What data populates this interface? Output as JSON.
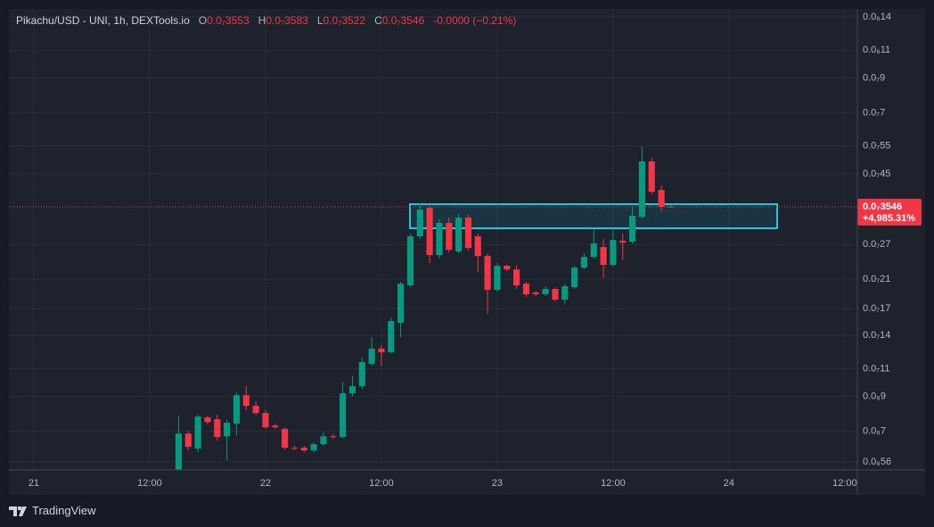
{
  "chart_data": {
    "type": "candlestick",
    "title": "Pikachu/USD - UNI, 1h, DEXTools.io",
    "ohlc_legend": [
      {
        "label": "O",
        "value": "0.0₇3553"
      },
      {
        "label": "H",
        "value": "0.0₇3583"
      },
      {
        "label": "L",
        "value": "0.0₇3522"
      },
      {
        "label": "C",
        "value": "0.0₇3546"
      }
    ],
    "change": "-0.0000 (−0.21%)",
    "last_price_label": "0.0₇3546",
    "last_change_label": "+4,985.31%",
    "log_scale": true,
    "grid": true,
    "up_color": "#089981",
    "down_color": "#f23645",
    "x": [
      15,
      16,
      17,
      18,
      19,
      20,
      21,
      22,
      23,
      24,
      25,
      26,
      27,
      28,
      29,
      30,
      31,
      32,
      33,
      34,
      35,
      36,
      37,
      38,
      39,
      40,
      41,
      42,
      43,
      44,
      45,
      46,
      47,
      48,
      49,
      50,
      51,
      52,
      53,
      54,
      55,
      56,
      57,
      58,
      59,
      60,
      61,
      62,
      63,
      64,
      65,
      66
    ],
    "open": [
      5.08e-09,
      6.88e-09,
      6.17e-09,
      7.73e-09,
      7.63e-09,
      6.75e-09,
      7.39e-09,
      9.08e-09,
      8.41e-09,
      7.98e-09,
      7.29e-09,
      7.11e-09,
      6.21e-09,
      6.21e-09,
      6.09e-09,
      6.37e-09,
      6.75e-09,
      6.71e-09,
      9.2e-09,
      9.69e-09,
      1.139e-08,
      1.271e-08,
      1.238e-08,
      1.532e-08,
      2.009e-08,
      2.864e-08,
      3.521e-08,
      2.501e-08,
      3.155e-08,
      2.566e-08,
      3.28e-08,
      2.864e-08,
      2.484e-08,
      1.945e-08,
      2.315e-08,
      2.255e-08,
      2.034e-08,
      1.908e-08,
      1.884e-08,
      1.958e-08,
      1.812e-08,
      1.983e-08,
      2.284e-08,
      2.468e-08,
      2.651e-08,
      2.33e-08,
      2.773e-08,
      2.755e-08,
      3.301e-08,
      4.924e-08,
      4.005e-08,
      3.553e-08
    ],
    "high": [
      7.83e-09,
      7.02e-09,
      7.88e-09,
      7.83e-09,
      7.88e-09,
      7.63e-09,
      9.26e-09,
      9.69e-09,
      8.68e-09,
      8.14e-09,
      7.39e-09,
      7.2e-09,
      6.29e-09,
      6.29e-09,
      6.45e-09,
      6.93e-09,
      6.84e-09,
      1.001e-08,
      1.041e-08,
      1.192e-08,
      1.381e-08,
      1.304e-08,
      1.593e-08,
      2.061e-08,
      2.92e-08,
      3.637e-08,
      3.567e-08,
      3.238e-08,
      3.28e-08,
      3.365e-08,
      3.344e-08,
      2.92e-08,
      2.533e-08,
      2.36e-08,
      2.33e-08,
      2.315e-08,
      2.061e-08,
      1.933e-08,
      1.996e-08,
      1.983e-08,
      2.034e-08,
      2.315e-08,
      2.533e-08,
      2.996e-08,
      2.809e-08,
      2.996e-08,
      2.92e-08,
      3.544e-08,
      5.46e-08,
      5.053e-08,
      4.137e-08,
      3.583e-08
    ],
    "low": [
      4.86e-09,
      6.09e-09,
      6.01e-09,
      7.34e-09,
      6.54e-09,
      5.67e-09,
      6.79e-09,
      8.14e-09,
      7.88e-09,
      7.11e-09,
      7.11e-09,
      6.13e-09,
      6.09e-09,
      6.01e-09,
      6.01e-09,
      6.29e-09,
      6.62e-09,
      6.66e-09,
      9.02e-09,
      9.5e-09,
      1.124e-08,
      1.124e-08,
      1.23e-08,
      1.381e-08,
      1.983e-08,
      2.809e-08,
      2.36e-08,
      2.437e-08,
      2.549e-08,
      2.533e-08,
      2.583e-08,
      2.212e-08,
      1.634e-08,
      1.92e-08,
      2.226e-08,
      1.958e-08,
      1.848e-08,
      1.86e-08,
      1.86e-08,
      1.789e-08,
      1.754e-08,
      1.958e-08,
      2.255e-08,
      2.437e-08,
      2.115e-08,
      2.299e-08,
      2.406e-08,
      2.72e-08,
      3.259e-08,
      3.878e-08,
      3.431e-08,
      3.522e-08
    ],
    "close": [
      6.88e-09,
      6.25e-09,
      7.78e-09,
      7.48e-09,
      6.71e-09,
      7.44e-09,
      9.08e-09,
      8.41e-09,
      7.98e-09,
      7.2e-09,
      7.2e-09,
      6.21e-09,
      6.17e-09,
      6.09e-09,
      6.37e-09,
      6.75e-09,
      6.71e-09,
      9.2e-09,
      9.69e-09,
      1.154e-08,
      1.271e-08,
      1.238e-08,
      1.552e-08,
      2.034e-08,
      2.864e-08,
      3.476e-08,
      2.501e-08,
      3.155e-08,
      2.599e-08,
      3.28e-08,
      2.634e-08,
      2.484e-08,
      1.945e-08,
      2.315e-08,
      2.255e-08,
      2.009e-08,
      1.884e-08,
      1.884e-08,
      1.958e-08,
      1.812e-08,
      1.996e-08,
      2.284e-08,
      2.468e-08,
      2.72e-08,
      2.33e-08,
      2.791e-08,
      2.737e-08,
      3.322e-08,
      4.924e-08,
      3.954e-08,
      3.544e-08,
      3.546e-08
    ],
    "xlim": [
      -2.58,
      85.3
    ],
    "xticks": [
      {
        "value": 0,
        "label": "21"
      },
      {
        "value": 12,
        "label": "12:00"
      },
      {
        "value": 24,
        "label": "22"
      },
      {
        "value": 36,
        "label": "12:00"
      },
      {
        "value": 48,
        "label": "23"
      },
      {
        "value": 60,
        "label": "12:00"
      },
      {
        "value": 72,
        "label": "24"
      },
      {
        "value": 84,
        "label": "12:00"
      }
    ],
    "ylim": [
      5.29e-09,
      1.483e-07
    ],
    "yticks": [
      {
        "value": 1.4e-07,
        "label": "0.0₆14"
      },
      {
        "value": 1.1e-07,
        "label": "0.0₆11"
      },
      {
        "value": 9e-08,
        "label": "0.0₇9"
      },
      {
        "value": 7e-08,
        "label": "0.0₇7"
      },
      {
        "value": 5.5e-08,
        "label": "0.0₇55"
      },
      {
        "value": 4.5e-08,
        "label": "0.0₇45"
      },
      {
        "value": 2.7e-08,
        "label": "0.0₇27"
      },
      {
        "value": 2.1e-08,
        "label": "0.0₇21"
      },
      {
        "value": 1.7e-08,
        "label": "0.0₇17"
      },
      {
        "value": 1.4e-08,
        "label": "0.0₇14"
      },
      {
        "value": 1.1e-08,
        "label": "0.0₇11"
      },
      {
        "value": 9e-09,
        "label": "0.0₈9"
      },
      {
        "value": 7e-09,
        "label": "0.0₈7"
      },
      {
        "value": 5.6e-09,
        "label": "0.0₈56"
      }
    ]
  }
}
